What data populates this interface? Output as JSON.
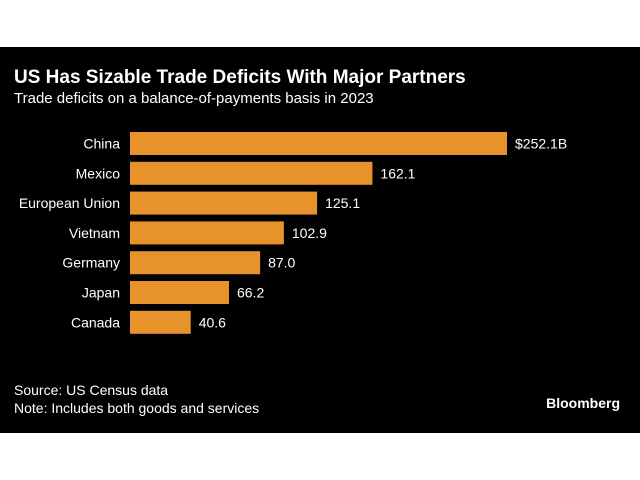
{
  "header": {
    "title": "US Has Sizable Trade Deficits With Major Partners",
    "subtitle": "Trade deficits on a balance-of-payments basis in 2023"
  },
  "chart_data": {
    "type": "bar",
    "orientation": "horizontal",
    "categories": [
      "China",
      "Mexico",
      "European Union",
      "Vietnam",
      "Germany",
      "Japan",
      "Canada"
    ],
    "values": [
      252.1,
      162.1,
      125.1,
      102.9,
      87.0,
      66.2,
      40.6
    ],
    "value_labels": [
      "$252.1B",
      "162.1",
      "125.1",
      "102.9",
      "87.0",
      "66.2",
      "40.6"
    ],
    "title": "US Has Sizable Trade Deficits With Major Partners",
    "subtitle": "Trade deficits on a balance-of-payments basis in 2023",
    "xlim": [
      0,
      252.1
    ],
    "bar_color": "#e8922c",
    "grid": false,
    "legend": "none"
  },
  "footer": {
    "source": "Source: US Census data",
    "note": "Note: Includes both goods and services",
    "brand": "Bloomberg"
  },
  "colors": {
    "background": "#000000",
    "text": "#ffffff",
    "accent": "#e8922c"
  }
}
